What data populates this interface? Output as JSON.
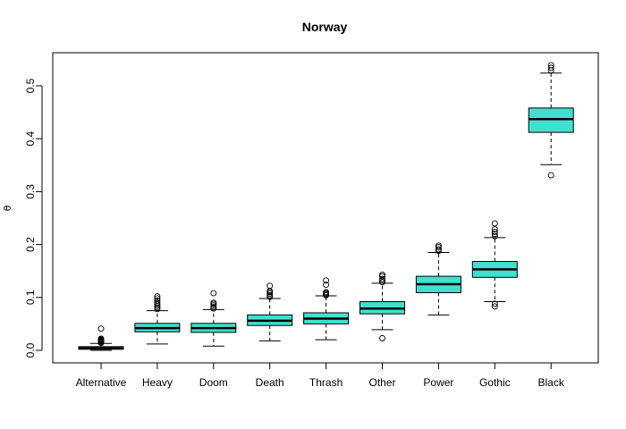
{
  "chart_data": {
    "type": "boxplot",
    "title": "Norway",
    "xlabel": "",
    "ylabel": "θ",
    "ylim": [
      -0.018,
      0.56
    ],
    "yticks": [
      0.0,
      0.1,
      0.2,
      0.3,
      0.4,
      0.5
    ],
    "ytick_labels": [
      "0.0",
      "0.1",
      "0.2",
      "0.3",
      "0.4",
      "0.5"
    ],
    "box_fill": "#40E0D0",
    "grid": false,
    "categories": [
      "Alternative",
      "Heavy",
      "Doom",
      "Death",
      "Thrash",
      "Other",
      "Power",
      "Gothic",
      "Black"
    ],
    "boxes": [
      {
        "category": "Alternative",
        "whisker_low": 0.0,
        "q1": 0.002,
        "median": 0.004,
        "q3": 0.007,
        "whisker_high": 0.013,
        "outliers": [
          0.014,
          0.015,
          0.016,
          0.017,
          0.018,
          0.019,
          0.02,
          0.021,
          0.022,
          0.041
        ]
      },
      {
        "category": "Heavy",
        "whisker_low": 0.012,
        "q1": 0.035,
        "median": 0.042,
        "q3": 0.051,
        "whisker_high": 0.075,
        "outliers": [
          0.078,
          0.081,
          0.084,
          0.087,
          0.09,
          0.094,
          0.098,
          0.102
        ]
      },
      {
        "category": "Doom",
        "whisker_low": 0.008,
        "q1": 0.034,
        "median": 0.042,
        "q3": 0.051,
        "whisker_high": 0.077,
        "outliers": [
          0.079,
          0.082,
          0.085,
          0.088,
          0.09,
          0.108
        ]
      },
      {
        "category": "Death",
        "whisker_low": 0.018,
        "q1": 0.047,
        "median": 0.056,
        "q3": 0.067,
        "whisker_high": 0.098,
        "outliers": [
          0.101,
          0.104,
          0.107,
          0.11,
          0.112,
          0.122
        ]
      },
      {
        "category": "Thrash",
        "whisker_low": 0.02,
        "q1": 0.05,
        "median": 0.06,
        "q3": 0.071,
        "whisker_high": 0.103,
        "outliers": [
          0.104,
          0.106,
          0.108,
          0.11,
          0.124,
          0.132
        ]
      },
      {
        "category": "Other",
        "whisker_low": 0.039,
        "q1": 0.069,
        "median": 0.079,
        "q3": 0.092,
        "whisker_high": 0.127,
        "outliers": [
          0.023,
          0.129,
          0.132,
          0.135,
          0.14,
          0.143
        ]
      },
      {
        "category": "Power",
        "whisker_low": 0.067,
        "q1": 0.109,
        "median": 0.125,
        "q3": 0.14,
        "whisker_high": 0.185,
        "outliers": [
          0.188,
          0.191,
          0.195,
          0.198
        ]
      },
      {
        "category": "Gothic",
        "whisker_low": 0.092,
        "q1": 0.138,
        "median": 0.153,
        "q3": 0.168,
        "whisker_high": 0.213,
        "outliers": [
          0.083,
          0.088,
          0.216,
          0.22,
          0.224,
          0.229,
          0.24
        ]
      },
      {
        "category": "Black",
        "whisker_low": 0.351,
        "q1": 0.412,
        "median": 0.437,
        "q3": 0.458,
        "whisker_high": 0.524,
        "outliers": [
          0.331,
          0.529,
          0.534,
          0.539
        ]
      }
    ]
  }
}
